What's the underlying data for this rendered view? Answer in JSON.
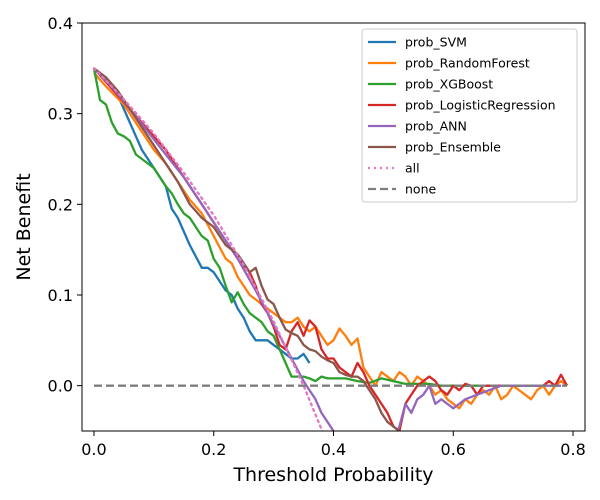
{
  "chart_data": {
    "type": "line",
    "title": "",
    "xlabel": "Threshold Probability",
    "ylabel": "Net Benefit",
    "xlim": [
      -0.02,
      0.82
    ],
    "ylim": [
      -0.05,
      0.4
    ],
    "xticks": [
      0.0,
      0.2,
      0.4,
      0.6,
      0.8
    ],
    "xtick_labels": [
      "0.0",
      "0.2",
      "0.4",
      "0.6",
      "0.8"
    ],
    "yticks": [
      0.0,
      0.1,
      0.2,
      0.3,
      0.4
    ],
    "ytick_labels": [
      "0.0",
      "0.1",
      "0.2",
      "0.3",
      "0.4"
    ],
    "grid": false,
    "legend_position": "top-right",
    "series": [
      {
        "name": "prob_SVM",
        "color": "#1f77b4",
        "style": "solid",
        "x": [
          0.0,
          0.02,
          0.04,
          0.06,
          0.07,
          0.08,
          0.1,
          0.12,
          0.13,
          0.14,
          0.15,
          0.16,
          0.18,
          0.19,
          0.2,
          0.21,
          0.22,
          0.23,
          0.24,
          0.25,
          0.26,
          0.27,
          0.28,
          0.29,
          0.3,
          0.31,
          0.32,
          0.33,
          0.34,
          0.35,
          0.36
        ],
        "y": [
          0.35,
          0.335,
          0.32,
          0.29,
          0.275,
          0.26,
          0.24,
          0.22,
          0.195,
          0.185,
          0.17,
          0.155,
          0.13,
          0.13,
          0.125,
          0.115,
          0.105,
          0.1,
          0.085,
          0.075,
          0.06,
          0.05,
          0.05,
          0.05,
          0.045,
          0.04,
          0.035,
          0.03,
          0.03,
          0.035,
          0.025
        ]
      },
      {
        "name": "prob_RandomForest",
        "color": "#ff7f0e",
        "style": "solid",
        "x": [
          0.0,
          0.02,
          0.05,
          0.08,
          0.1,
          0.12,
          0.14,
          0.16,
          0.18,
          0.2,
          0.22,
          0.23,
          0.24,
          0.25,
          0.26,
          0.27,
          0.28,
          0.29,
          0.3,
          0.31,
          0.32,
          0.33,
          0.34,
          0.35,
          0.36,
          0.37,
          0.38,
          0.39,
          0.4,
          0.41,
          0.42,
          0.43,
          0.44,
          0.45,
          0.46,
          0.47,
          0.48,
          0.49,
          0.5,
          0.51,
          0.52,
          0.53,
          0.54,
          0.55,
          0.56,
          0.57,
          0.58,
          0.59,
          0.6,
          0.61,
          0.62,
          0.63,
          0.64,
          0.65,
          0.66,
          0.67,
          0.68,
          0.69,
          0.7,
          0.71,
          0.72,
          0.73,
          0.74,
          0.75,
          0.76,
          0.77,
          0.78,
          0.79
        ],
        "y": [
          0.345,
          0.33,
          0.31,
          0.28,
          0.26,
          0.245,
          0.225,
          0.205,
          0.19,
          0.165,
          0.14,
          0.135,
          0.12,
          0.11,
          0.1,
          0.095,
          0.09,
          0.085,
          0.08,
          0.075,
          0.07,
          0.07,
          0.075,
          0.065,
          0.06,
          0.065,
          0.055,
          0.045,
          0.05,
          0.063,
          0.055,
          0.045,
          0.052,
          0.02,
          0.01,
          0.0,
          0.015,
          0.01,
          0.005,
          0.015,
          0.01,
          0.0,
          0.01,
          0.005,
          0.0,
          -0.01,
          -0.005,
          -0.015,
          -0.02,
          -0.025,
          -0.015,
          -0.02,
          -0.01,
          -0.005,
          -0.01,
          0.0,
          -0.015,
          -0.01,
          0.0,
          -0.005,
          -0.01,
          -0.015,
          -0.005,
          0.0,
          -0.01,
          0.0,
          0.005,
          0.0
        ]
      },
      {
        "name": "prob_XGBoost",
        "color": "#2ca02c",
        "style": "solid",
        "x": [
          0.0,
          0.01,
          0.02,
          0.03,
          0.04,
          0.05,
          0.06,
          0.07,
          0.08,
          0.09,
          0.1,
          0.11,
          0.12,
          0.13,
          0.14,
          0.15,
          0.16,
          0.17,
          0.18,
          0.19,
          0.2,
          0.21,
          0.22,
          0.23,
          0.24,
          0.25,
          0.26,
          0.27,
          0.28,
          0.29,
          0.3,
          0.31,
          0.32,
          0.33,
          0.34,
          0.35,
          0.36,
          0.37,
          0.38,
          0.39,
          0.4,
          0.42,
          0.44,
          0.46,
          0.48,
          0.5,
          0.52,
          0.54,
          0.56,
          0.58,
          0.6,
          0.62,
          0.64,
          0.66,
          0.68
        ],
        "y": [
          0.35,
          0.315,
          0.31,
          0.29,
          0.278,
          0.275,
          0.27,
          0.255,
          0.25,
          0.245,
          0.24,
          0.23,
          0.22,
          0.212,
          0.2,
          0.19,
          0.185,
          0.175,
          0.165,
          0.16,
          0.14,
          0.13,
          0.11,
          0.092,
          0.103,
          0.09,
          0.08,
          0.075,
          0.07,
          0.06,
          0.055,
          0.04,
          0.025,
          0.01,
          0.01,
          0.01,
          0.008,
          0.005,
          0.01,
          0.008,
          0.008,
          0.008,
          0.005,
          0.003,
          0.008,
          0.005,
          0.002,
          0.002,
          0.002,
          0.0,
          0.0,
          0.0,
          0.0,
          0.0,
          0.0
        ]
      },
      {
        "name": "prob_LogisticRegression",
        "color": "#d62728",
        "style": "solid",
        "x": [
          0.0,
          0.02,
          0.04,
          0.06,
          0.08,
          0.1,
          0.12,
          0.14,
          0.16,
          0.18,
          0.2,
          0.22,
          0.24,
          0.26,
          0.27,
          0.28,
          0.29,
          0.3,
          0.31,
          0.32,
          0.33,
          0.34,
          0.35,
          0.36,
          0.37,
          0.38,
          0.39,
          0.4,
          0.41,
          0.42,
          0.43,
          0.44,
          0.45,
          0.46,
          0.47,
          0.48,
          0.49,
          0.5,
          0.51,
          0.52,
          0.53,
          0.54,
          0.55,
          0.56,
          0.57,
          0.58,
          0.59,
          0.6,
          0.61,
          0.62,
          0.63,
          0.64,
          0.65,
          0.66,
          0.67,
          0.68,
          0.69,
          0.7,
          0.71,
          0.72,
          0.73,
          0.74,
          0.75,
          0.76,
          0.77,
          0.78,
          0.79
        ],
        "y": [
          0.35,
          0.335,
          0.32,
          0.305,
          0.29,
          0.275,
          0.26,
          0.24,
          0.22,
          0.2,
          0.18,
          0.16,
          0.14,
          0.125,
          0.11,
          0.09,
          0.08,
          0.065,
          0.045,
          0.04,
          0.06,
          0.07,
          0.055,
          0.072,
          0.065,
          0.04,
          0.03,
          0.03,
          0.02,
          0.015,
          0.01,
          0.025,
          0.015,
          0.0,
          -0.01,
          -0.02,
          -0.03,
          -0.045,
          -0.05,
          -0.02,
          -0.01,
          0.0,
          0.005,
          0.01,
          0.005,
          -0.005,
          -0.01,
          0.0,
          -0.005,
          0.002,
          0.0,
          -0.01,
          0.0,
          0.0,
          0.0,
          0.0,
          0.0,
          0.0,
          0.0,
          0.0,
          0.0,
          0.0,
          0.0,
          0.005,
          0.0,
          0.012,
          0.0
        ]
      },
      {
        "name": "prob_ANN",
        "color": "#9467bd",
        "style": "solid",
        "x": [
          0.0,
          0.03,
          0.06,
          0.09,
          0.12,
          0.15,
          0.18,
          0.21,
          0.24,
          0.27,
          0.29,
          0.31,
          0.33,
          0.35,
          0.36,
          0.37,
          0.38,
          0.4,
          0.41,
          0.5,
          0.51,
          0.52,
          0.53,
          0.54,
          0.55,
          0.56,
          0.57,
          0.58,
          0.59,
          0.6,
          0.61,
          0.62,
          0.64,
          0.66,
          0.68,
          0.7,
          0.72,
          0.74,
          0.76,
          0.78
        ],
        "y": [
          0.35,
          0.33,
          0.305,
          0.28,
          0.255,
          0.23,
          0.2,
          0.17,
          0.14,
          0.105,
          0.08,
          0.055,
          0.03,
          0.005,
          -0.005,
          -0.015,
          -0.03,
          -0.05,
          -0.06,
          -0.06,
          -0.045,
          -0.02,
          -0.03,
          -0.015,
          -0.01,
          0.0,
          -0.02,
          -0.015,
          -0.02,
          -0.025,
          -0.02,
          -0.015,
          -0.01,
          -0.005,
          0.0,
          0.0,
          0.0,
          0.0,
          0.0,
          0.0
        ]
      },
      {
        "name": "prob_Ensemble",
        "color": "#8c564b",
        "style": "solid",
        "x": [
          0.0,
          0.02,
          0.04,
          0.06,
          0.08,
          0.1,
          0.12,
          0.14,
          0.16,
          0.18,
          0.2,
          0.22,
          0.24,
          0.26,
          0.27,
          0.28,
          0.29,
          0.3,
          0.31,
          0.32,
          0.33,
          0.34,
          0.35,
          0.36,
          0.37,
          0.38,
          0.39,
          0.4,
          0.41,
          0.42,
          0.43,
          0.44,
          0.45,
          0.46,
          0.47,
          0.48,
          0.49,
          0.5,
          0.51,
          0.52
        ],
        "y": [
          0.35,
          0.34,
          0.325,
          0.305,
          0.285,
          0.265,
          0.245,
          0.225,
          0.2,
          0.185,
          0.175,
          0.155,
          0.145,
          0.125,
          0.13,
          0.11,
          0.095,
          0.09,
          0.075,
          0.062,
          0.058,
          0.055,
          0.045,
          0.04,
          0.038,
          0.032,
          0.028,
          0.025,
          0.015,
          0.012,
          0.01,
          0.01,
          0.005,
          -0.005,
          -0.015,
          -0.03,
          -0.04,
          -0.045,
          -0.05,
          -0.055
        ]
      },
      {
        "name": "all",
        "color": "#e377c2",
        "style": "dotted",
        "x": [
          0.0,
          0.05,
          0.1,
          0.15,
          0.2,
          0.25,
          0.3,
          0.35,
          0.38,
          0.4
        ],
        "y": [
          0.35,
          0.316,
          0.278,
          0.235,
          0.188,
          0.133,
          0.071,
          0.0,
          -0.048,
          -0.083
        ]
      },
      {
        "name": "none",
        "color": "#7f7f7f",
        "style": "dashed",
        "x": [
          0.0,
          0.79
        ],
        "y": [
          0.0,
          0.0
        ]
      }
    ]
  }
}
